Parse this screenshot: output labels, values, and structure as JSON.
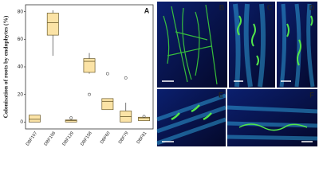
{
  "chart_data": {
    "type": "box",
    "y_label": "Colonisation of roots by endophytes (%)",
    "annotation": "A",
    "categories": [
      "DBF107",
      "DBF108",
      "DBF129",
      "DBF158",
      "DBF60",
      "DBF79",
      "DBF81"
    ],
    "boxes": [
      {
        "min": 0,
        "q1": 0,
        "median": 2,
        "q3": 5,
        "max": 5
      },
      {
        "min": 48,
        "q1": 63,
        "median": 72,
        "q3": 79,
        "max": 81
      },
      {
        "min": 0,
        "q1": 0,
        "median": 1,
        "q3": 1.5,
        "max": 2,
        "outliers": [
          3
        ]
      },
      {
        "min": 35,
        "q1": 36,
        "median": 44,
        "q3": 46,
        "max": 50,
        "outliers": [
          20
        ]
      },
      {
        "min": 9,
        "q1": 9,
        "median": 15,
        "q3": 17,
        "max": 17,
        "outliers": [
          35
        ]
      },
      {
        "min": 0,
        "q1": 0,
        "median": 4,
        "q3": 8,
        "max": 14,
        "outliers": [
          32
        ]
      },
      {
        "min": 1,
        "q1": 1,
        "median": 3,
        "q3": 3.5,
        "max": 3.5,
        "outliers": [
          4
        ]
      }
    ],
    "color": "#fbe3a6",
    "ylim": [
      -5,
      85
    ],
    "yticks": [
      0,
      20,
      40,
      60,
      80
    ]
  },
  "panels": [
    "B",
    "C",
    "D",
    "E",
    "F"
  ]
}
